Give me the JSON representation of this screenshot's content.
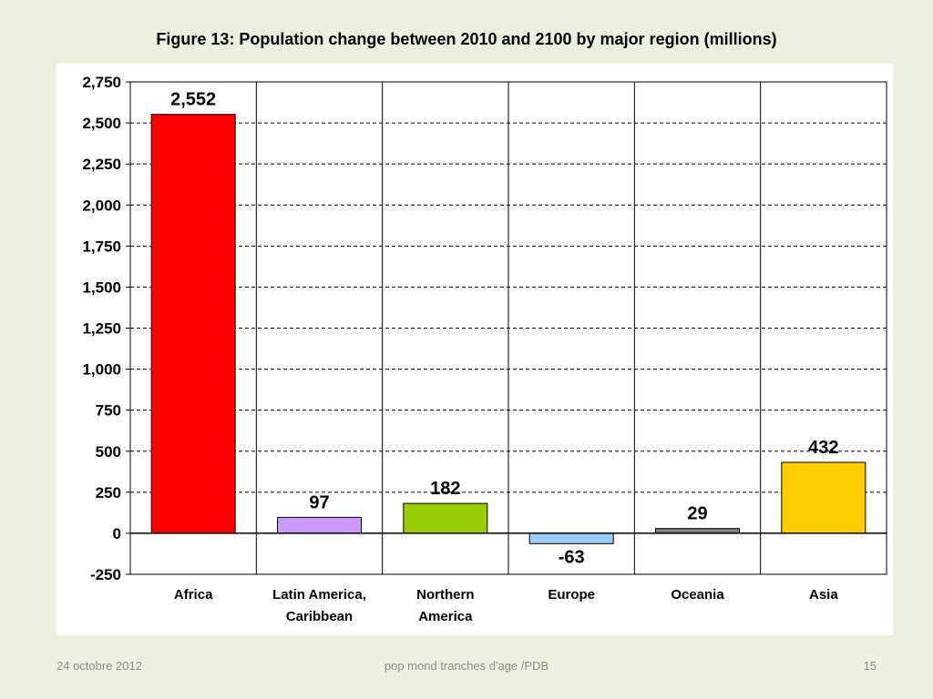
{
  "slide": {
    "title": "Figure 13: Population change between 2010 and 2100 by major region (millions)",
    "footer_date": "24 octobre 2012",
    "footer_center": "pop mond  tranches d'age /PDB",
    "footer_page": "15"
  },
  "chart_data": {
    "type": "bar",
    "title": "Figure 13: Population change between 2010 and 2100 by major region (millions)",
    "xlabel": "",
    "ylabel": "",
    "categories": [
      [
        "Africa"
      ],
      [
        "Latin America,",
        "Caribbean"
      ],
      [
        "Northern",
        "America"
      ],
      [
        "Europe"
      ],
      [
        "Oceania"
      ],
      [
        "Asia"
      ]
    ],
    "values": [
      2552,
      97,
      182,
      -63,
      29,
      432
    ],
    "value_labels": [
      "2,552",
      "97",
      "182",
      "-63",
      "29",
      "432"
    ],
    "colors": [
      "#ff0000",
      "#cc99ff",
      "#99cc00",
      "#99ccff",
      "#808080",
      "#ffcc00"
    ],
    "ylim": [
      -250,
      2750
    ],
    "yticks": [
      -250,
      0,
      250,
      500,
      750,
      1000,
      1250,
      1500,
      1750,
      2000,
      2250,
      2500,
      2750
    ],
    "ytick_labels": [
      "-250",
      "0",
      "250",
      "500",
      "750",
      "1,000",
      "1,250",
      "1,500",
      "1,750",
      "2,000",
      "2,250",
      "2,500",
      "2,750"
    ],
    "grid": "horizontal dashed",
    "legend": "none"
  }
}
